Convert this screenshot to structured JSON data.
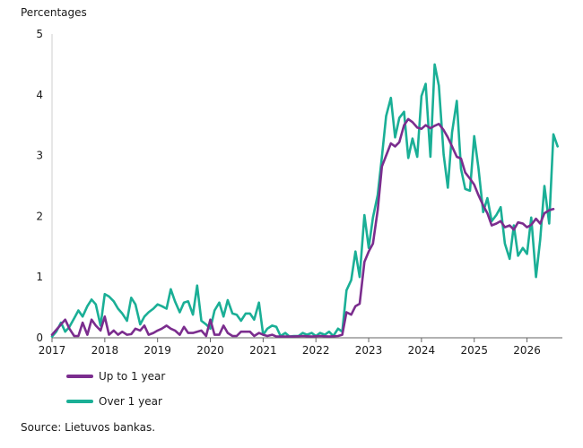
{
  "chart_data": {
    "type": "line",
    "ylabel": "Percentages",
    "ylim": [
      0,
      5
    ],
    "yticks": [
      "0",
      "1",
      "2",
      "3",
      "4",
      "5"
    ],
    "xlim": [
      2017.0,
      2026.67
    ],
    "xticks": [
      "2017",
      "2018",
      "2019",
      "2020",
      "2021",
      "2022",
      "2023",
      "2024",
      "2025",
      "2026"
    ],
    "grid": false,
    "legend_position": "bottom-left",
    "source": "Source: Lietuvos bankas.",
    "series": [
      {
        "name": "Up to 1 year",
        "color": "#7b2d8e",
        "points": [
          [
            2017.0,
            0.05
          ],
          [
            2017.17,
            0.22
          ],
          [
            2017.25,
            0.3
          ],
          [
            2017.33,
            0.15
          ],
          [
            2017.42,
            0.03
          ],
          [
            2017.5,
            0.03
          ],
          [
            2017.58,
            0.25
          ],
          [
            2017.67,
            0.05
          ],
          [
            2017.75,
            0.3
          ],
          [
            2017.83,
            0.2
          ],
          [
            2017.92,
            0.12
          ],
          [
            2018.0,
            0.35
          ],
          [
            2018.08,
            0.05
          ],
          [
            2018.17,
            0.12
          ],
          [
            2018.25,
            0.05
          ],
          [
            2018.33,
            0.1
          ],
          [
            2018.42,
            0.05
          ],
          [
            2018.5,
            0.06
          ],
          [
            2018.58,
            0.15
          ],
          [
            2018.67,
            0.12
          ],
          [
            2018.75,
            0.2
          ],
          [
            2018.83,
            0.05
          ],
          [
            2018.92,
            0.08
          ],
          [
            2019.0,
            0.12
          ],
          [
            2019.08,
            0.15
          ],
          [
            2019.17,
            0.2
          ],
          [
            2019.25,
            0.15
          ],
          [
            2019.33,
            0.12
          ],
          [
            2019.42,
            0.05
          ],
          [
            2019.5,
            0.18
          ],
          [
            2019.58,
            0.08
          ],
          [
            2019.67,
            0.08
          ],
          [
            2019.75,
            0.1
          ],
          [
            2019.83,
            0.12
          ],
          [
            2019.92,
            0.03
          ],
          [
            2020.0,
            0.3
          ],
          [
            2020.08,
            0.05
          ],
          [
            2020.17,
            0.05
          ],
          [
            2020.25,
            0.2
          ],
          [
            2020.33,
            0.08
          ],
          [
            2020.42,
            0.03
          ],
          [
            2020.5,
            0.03
          ],
          [
            2020.58,
            0.1
          ],
          [
            2020.67,
            0.1
          ],
          [
            2020.75,
            0.1
          ],
          [
            2020.83,
            0.03
          ],
          [
            2020.92,
            0.08
          ],
          [
            2021.0,
            0.05
          ],
          [
            2021.08,
            0.03
          ],
          [
            2021.17,
            0.05
          ],
          [
            2021.25,
            0.02
          ],
          [
            2021.42,
            0.02
          ],
          [
            2021.58,
            0.02
          ],
          [
            2021.75,
            0.03
          ],
          [
            2021.92,
            0.02
          ],
          [
            2022.08,
            0.03
          ],
          [
            2022.25,
            0.02
          ],
          [
            2022.42,
            0.03
          ],
          [
            2022.5,
            0.05
          ],
          [
            2022.58,
            0.42
          ],
          [
            2022.67,
            0.38
          ],
          [
            2022.75,
            0.52
          ],
          [
            2022.83,
            0.56
          ],
          [
            2022.92,
            1.25
          ],
          [
            2023.0,
            1.42
          ],
          [
            2023.08,
            1.55
          ],
          [
            2023.17,
            2.1
          ],
          [
            2023.25,
            2.82
          ],
          [
            2023.33,
            3.0
          ],
          [
            2023.42,
            3.2
          ],
          [
            2023.5,
            3.15
          ],
          [
            2023.58,
            3.22
          ],
          [
            2023.67,
            3.5
          ],
          [
            2023.75,
            3.6
          ],
          [
            2023.83,
            3.55
          ],
          [
            2023.92,
            3.46
          ],
          [
            2024.0,
            3.44
          ],
          [
            2024.08,
            3.5
          ],
          [
            2024.17,
            3.45
          ],
          [
            2024.25,
            3.49
          ],
          [
            2024.33,
            3.52
          ],
          [
            2024.42,
            3.42
          ],
          [
            2024.5,
            3.3
          ],
          [
            2024.58,
            3.15
          ],
          [
            2024.67,
            2.98
          ],
          [
            2024.75,
            2.95
          ],
          [
            2024.83,
            2.72
          ],
          [
            2024.92,
            2.62
          ],
          [
            2025.0,
            2.52
          ],
          [
            2025.08,
            2.35
          ],
          [
            2025.17,
            2.18
          ],
          [
            2025.25,
            2.05
          ],
          [
            2025.33,
            1.85
          ],
          [
            2025.42,
            1.88
          ],
          [
            2025.5,
            1.92
          ],
          [
            2025.58,
            1.82
          ],
          [
            2025.67,
            1.85
          ],
          [
            2025.75,
            1.78
          ],
          [
            2025.83,
            1.9
          ],
          [
            2025.92,
            1.88
          ],
          [
            2026.0,
            1.82
          ],
          [
            2026.08,
            1.86
          ],
          [
            2026.17,
            1.96
          ],
          [
            2026.25,
            1.88
          ],
          [
            2026.33,
            2.05
          ],
          [
            2026.42,
            2.1
          ],
          [
            2026.5,
            2.12
          ]
        ]
      },
      {
        "name": "Over 1 year",
        "color": "#1aaf96",
        "points": [
          [
            2017.0,
            0.02
          ],
          [
            2017.08,
            0.1
          ],
          [
            2017.17,
            0.25
          ],
          [
            2017.25,
            0.1
          ],
          [
            2017.33,
            0.18
          ],
          [
            2017.42,
            0.32
          ],
          [
            2017.5,
            0.45
          ],
          [
            2017.58,
            0.35
          ],
          [
            2017.67,
            0.52
          ],
          [
            2017.75,
            0.63
          ],
          [
            2017.83,
            0.55
          ],
          [
            2017.92,
            0.2
          ],
          [
            2018.0,
            0.72
          ],
          [
            2018.08,
            0.68
          ],
          [
            2018.17,
            0.6
          ],
          [
            2018.25,
            0.48
          ],
          [
            2018.33,
            0.4
          ],
          [
            2018.42,
            0.28
          ],
          [
            2018.5,
            0.66
          ],
          [
            2018.58,
            0.55
          ],
          [
            2018.67,
            0.22
          ],
          [
            2018.75,
            0.35
          ],
          [
            2018.83,
            0.42
          ],
          [
            2018.92,
            0.48
          ],
          [
            2019.0,
            0.55
          ],
          [
            2019.08,
            0.52
          ],
          [
            2019.17,
            0.48
          ],
          [
            2019.25,
            0.8
          ],
          [
            2019.33,
            0.6
          ],
          [
            2019.42,
            0.42
          ],
          [
            2019.5,
            0.58
          ],
          [
            2019.58,
            0.6
          ],
          [
            2019.67,
            0.38
          ],
          [
            2019.75,
            0.86
          ],
          [
            2019.83,
            0.28
          ],
          [
            2019.92,
            0.22
          ],
          [
            2020.0,
            0.15
          ],
          [
            2020.08,
            0.45
          ],
          [
            2020.17,
            0.58
          ],
          [
            2020.25,
            0.35
          ],
          [
            2020.33,
            0.62
          ],
          [
            2020.42,
            0.4
          ],
          [
            2020.5,
            0.38
          ],
          [
            2020.58,
            0.28
          ],
          [
            2020.67,
            0.4
          ],
          [
            2020.75,
            0.4
          ],
          [
            2020.83,
            0.3
          ],
          [
            2020.92,
            0.58
          ],
          [
            2021.0,
            0.05
          ],
          [
            2021.08,
            0.15
          ],
          [
            2021.17,
            0.2
          ],
          [
            2021.25,
            0.18
          ],
          [
            2021.33,
            0.03
          ],
          [
            2021.42,
            0.08
          ],
          [
            2021.5,
            0.02
          ],
          [
            2021.58,
            0.03
          ],
          [
            2021.67,
            0.03
          ],
          [
            2021.75,
            0.08
          ],
          [
            2021.83,
            0.05
          ],
          [
            2021.92,
            0.08
          ],
          [
            2022.0,
            0.03
          ],
          [
            2022.08,
            0.08
          ],
          [
            2022.17,
            0.05
          ],
          [
            2022.25,
            0.1
          ],
          [
            2022.33,
            0.03
          ],
          [
            2022.42,
            0.15
          ],
          [
            2022.5,
            0.1
          ],
          [
            2022.58,
            0.78
          ],
          [
            2022.67,
            0.95
          ],
          [
            2022.75,
            1.42
          ],
          [
            2022.83,
            1.0
          ],
          [
            2022.92,
            2.02
          ],
          [
            2023.0,
            1.48
          ],
          [
            2023.08,
            1.98
          ],
          [
            2023.17,
            2.35
          ],
          [
            2023.25,
            2.98
          ],
          [
            2023.33,
            3.65
          ],
          [
            2023.42,
            3.95
          ],
          [
            2023.5,
            3.3
          ],
          [
            2023.58,
            3.62
          ],
          [
            2023.67,
            3.72
          ],
          [
            2023.75,
            2.96
          ],
          [
            2023.83,
            3.28
          ],
          [
            2023.92,
            2.98
          ],
          [
            2024.0,
            3.98
          ],
          [
            2024.08,
            4.18
          ],
          [
            2024.17,
            2.98
          ],
          [
            2024.25,
            4.5
          ],
          [
            2024.33,
            4.15
          ],
          [
            2024.42,
            3.02
          ],
          [
            2024.5,
            2.47
          ],
          [
            2024.58,
            3.38
          ],
          [
            2024.67,
            3.9
          ],
          [
            2024.75,
            2.78
          ],
          [
            2024.83,
            2.45
          ],
          [
            2024.92,
            2.42
          ],
          [
            2025.0,
            3.32
          ],
          [
            2025.08,
            2.8
          ],
          [
            2025.17,
            2.07
          ],
          [
            2025.25,
            2.3
          ],
          [
            2025.33,
            1.92
          ],
          [
            2025.42,
            2.02
          ],
          [
            2025.5,
            2.15
          ],
          [
            2025.58,
            1.55
          ],
          [
            2025.67,
            1.3
          ],
          [
            2025.75,
            1.85
          ],
          [
            2025.83,
            1.35
          ],
          [
            2025.92,
            1.48
          ],
          [
            2026.0,
            1.38
          ],
          [
            2026.08,
            1.98
          ],
          [
            2026.17,
            1.0
          ],
          [
            2026.25,
            1.62
          ],
          [
            2026.33,
            2.5
          ],
          [
            2026.42,
            1.88
          ],
          [
            2026.5,
            3.35
          ],
          [
            2026.58,
            3.15
          ]
        ]
      }
    ]
  }
}
